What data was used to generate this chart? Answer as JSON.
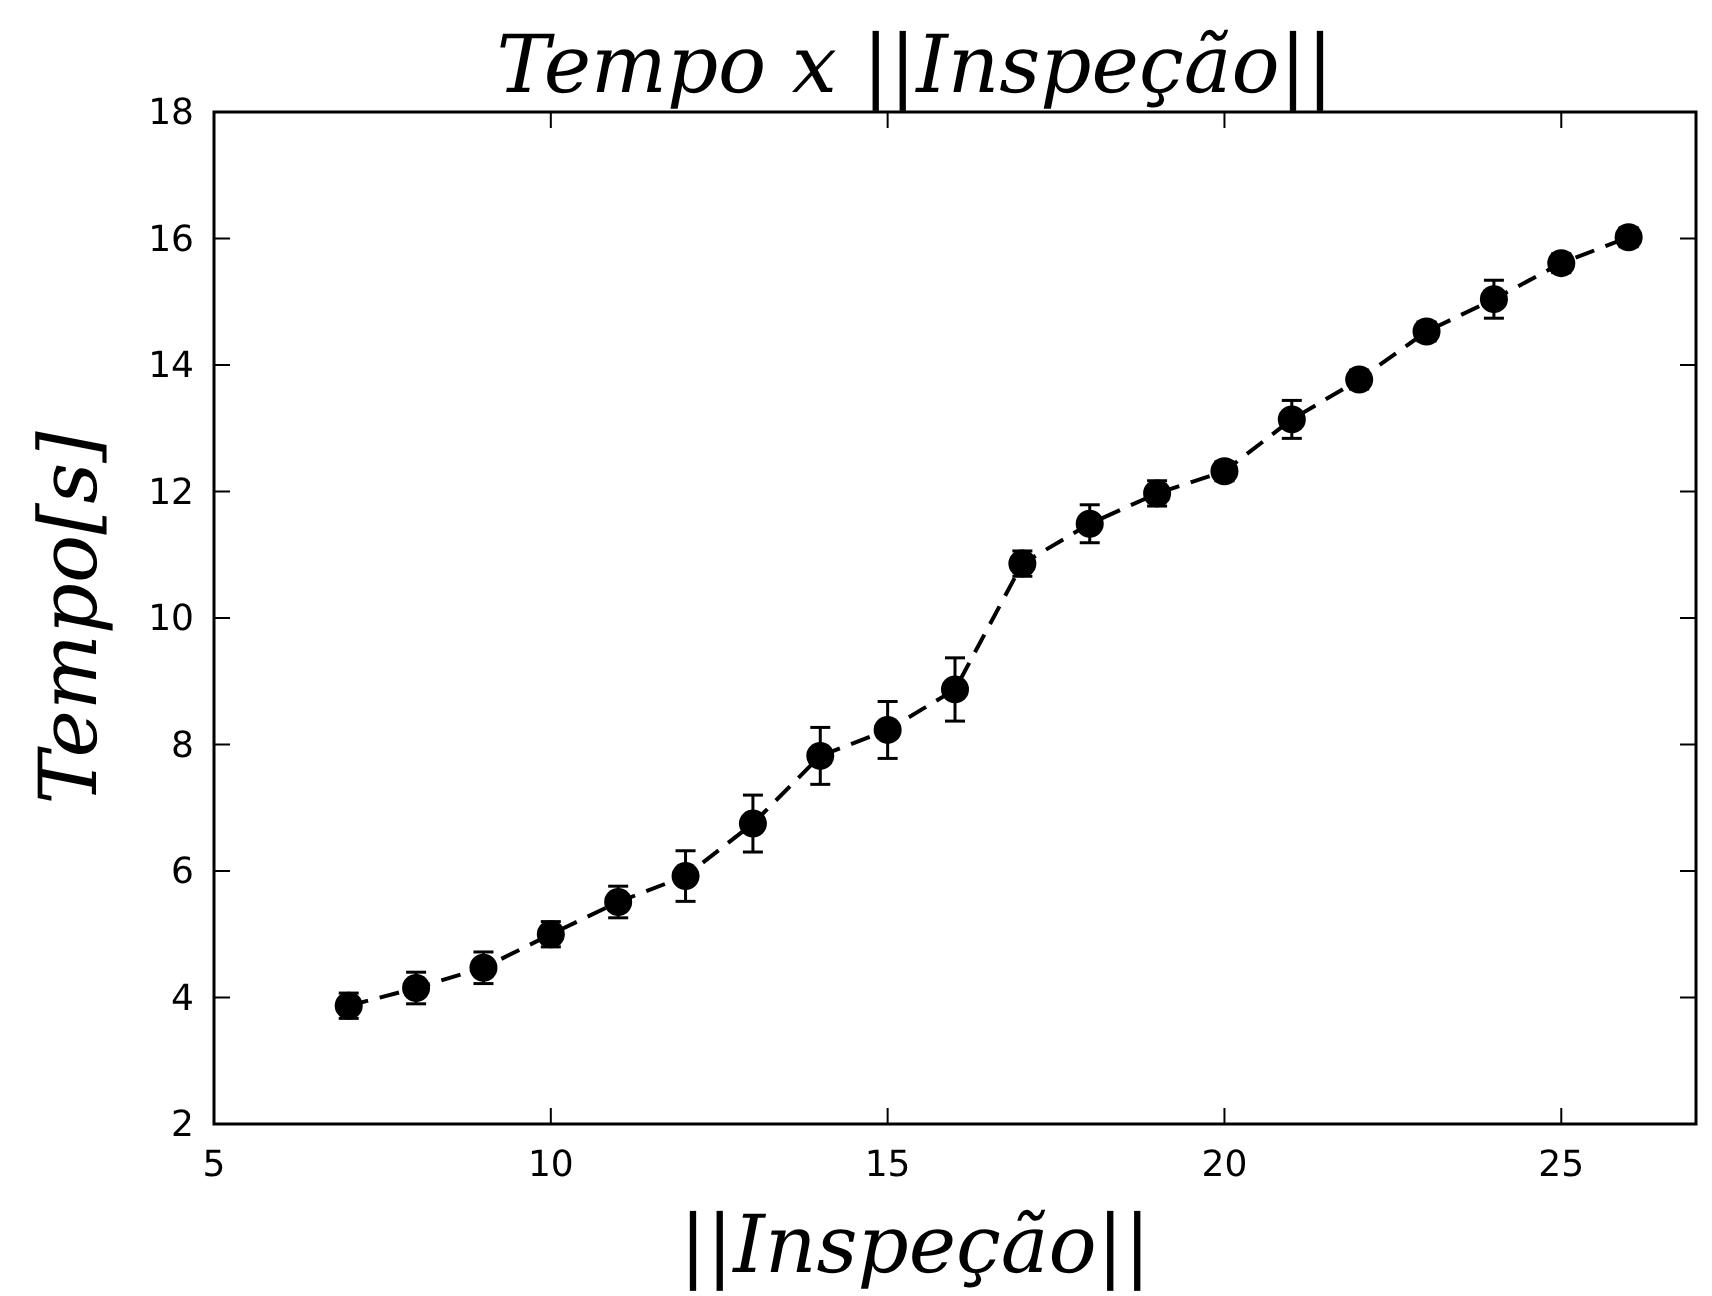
{
  "chart_data": {
    "type": "line",
    "title": "Tempo x ||Inspeção||",
    "xlabel": "||Inspeção||",
    "ylabel": "Tempo[s]",
    "x": [
      7,
      8,
      9,
      10,
      11,
      12,
      13,
      14,
      15,
      16,
      17,
      18,
      19,
      20,
      21,
      22,
      23,
      24,
      25,
      26
    ],
    "series": [
      {
        "color": "#000000",
        "values": [
          3.87,
          4.15,
          4.47,
          5.0,
          5.51,
          5.92,
          6.75,
          7.82,
          8.23,
          8.87,
          10.86,
          11.49,
          11.97,
          12.32,
          13.14,
          13.77,
          14.53,
          15.04,
          15.61,
          16.02
        ],
        "errors": [
          0.2,
          0.25,
          0.25,
          0.2,
          0.25,
          0.4,
          0.45,
          0.45,
          0.45,
          0.5,
          0.2,
          0.3,
          0.2,
          0.15,
          0.3,
          0.15,
          0.15,
          0.3,
          0.15,
          0.15
        ]
      }
    ],
    "xlim": [
      5,
      27
    ],
    "ylim": [
      2,
      18
    ],
    "xticks": [
      5,
      10,
      15,
      20,
      25
    ],
    "yticks": [
      2,
      4,
      6,
      8,
      10,
      12,
      14,
      16,
      18
    ],
    "marker": "circle",
    "line_style": "dashed",
    "grid": false
  }
}
